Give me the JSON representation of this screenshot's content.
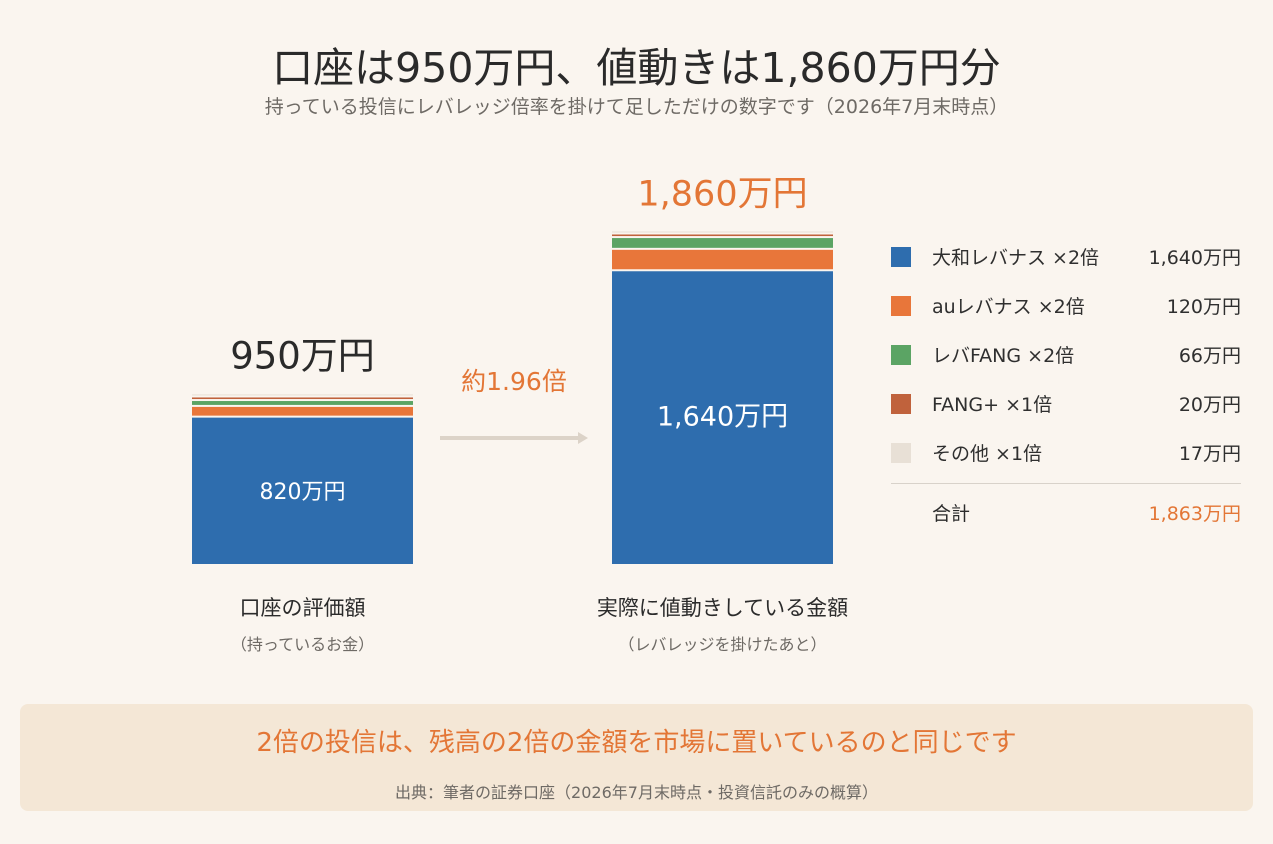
{
  "title": "口座は950万円、値動きは1,860万円分",
  "subtitle": "持っている投信にレバレッジ倍率を掛けて足しただけの数字です（2026年7月末時点）",
  "chart_data": {
    "type": "bar",
    "stacked": true,
    "unit": "万円",
    "categories": [
      "口座の評価額",
      "実際に値動きしている金額"
    ],
    "category_notes": [
      "（持っているお金）",
      "（レバレッジを掛けたあと）"
    ],
    "bar_totals": [
      "950万円",
      "1,860万円"
    ],
    "bar_inner_labels": [
      "820万円",
      "1,640万円"
    ],
    "ratio_label": "約1.96倍",
    "series": [
      {
        "name": "大和レバナス ×2倍",
        "values": [
          820,
          1640
        ],
        "color": "#2E6DAE"
      },
      {
        "name": "auレバナス ×2倍",
        "values": [
          60,
          120
        ],
        "color": "#E8763A"
      },
      {
        "name": "レバFANG ×2倍",
        "values": [
          33,
          66
        ],
        "color": "#5BA464"
      },
      {
        "name": "FANG+ ×1倍",
        "values": [
          20,
          20
        ],
        "color": "#C0623C"
      },
      {
        "name": "その他 ×1倍",
        "values": [
          17,
          17
        ],
        "color": "#E8E0D6"
      }
    ],
    "ylim": [
      0,
      1863
    ]
  },
  "legend": {
    "rows": [
      {
        "label": "大和レバナス ×2倍",
        "value": "1,640万円",
        "color": "#2E6DAE"
      },
      {
        "label": "auレバナス ×2倍",
        "value": "120万円",
        "color": "#E8763A"
      },
      {
        "label": "レバFANG ×2倍",
        "value": "66万円",
        "color": "#5BA464"
      },
      {
        "label": "FANG+ ×1倍",
        "value": "20万円",
        "color": "#C0623C"
      },
      {
        "label": "その他 ×1倍",
        "value": "17万円",
        "color": "#E8E0D6"
      }
    ],
    "total_label": "合計",
    "total_value": "1,863万円"
  },
  "footer": {
    "message": "2倍の投信は、残高の2倍の金額を市場に置いているのと同じです",
    "source": "出典：筆者の証券口座（2026年7月末時点・投資信託のみの概算）"
  },
  "colors": {
    "background": "#FAF5EF",
    "accent": "#E37636",
    "footer_bg": "#F4E7D6",
    "arrow": "#DCD3C8"
  }
}
